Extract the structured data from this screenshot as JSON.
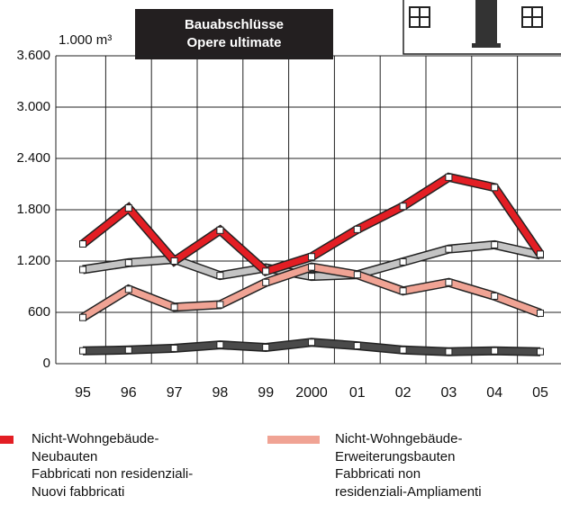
{
  "chart_data": {
    "type": "line",
    "title": "Bauabschlüsse\nOpere ultimate",
    "y_label": "1.000 m³",
    "categories": [
      "95",
      "96",
      "97",
      "98",
      "99",
      "2000",
      "01",
      "02",
      "03",
      "04",
      "05"
    ],
    "series": [
      {
        "color": "#c4c4c4",
        "values": [
          1100,
          1180,
          1220,
          1030,
          1120,
          1020,
          1040,
          1190,
          1340,
          1390,
          1270
        ]
      },
      {
        "color": "#4a4a4a",
        "values": [
          150,
          160,
          180,
          220,
          190,
          250,
          210,
          160,
          140,
          150,
          140
        ]
      },
      {
        "name": "Nicht-Wohngebäude-Erweiterungsbauten\nFabbricati non\nresidenziali-Ampliamenti",
        "color": "#f0a394",
        "values": [
          540,
          870,
          660,
          690,
          950,
          1130,
          1040,
          850,
          950,
          790,
          590
        ]
      },
      {
        "name": "Nicht-Wohngebäude-\nNeubauten\nFabbricati non residenziali-\nNuovi fabbricati",
        "color": "#e31e24",
        "values": [
          1400,
          1820,
          1200,
          1560,
          1080,
          1250,
          1570,
          1840,
          2180,
          2060,
          1280
        ]
      }
    ],
    "ylim": [
      0,
      3600
    ],
    "yticks": [
      0,
      600,
      {
        "value": 1200,
        "label": "1.200"
      },
      {
        "value": 1800,
        "label": "1.800"
      },
      {
        "value": 2400,
        "label": "2.400"
      },
      {
        "value": 3000,
        "label": "3.000"
      },
      {
        "value": 3600,
        "label": "3.600"
      }
    ],
    "grid": true
  }
}
